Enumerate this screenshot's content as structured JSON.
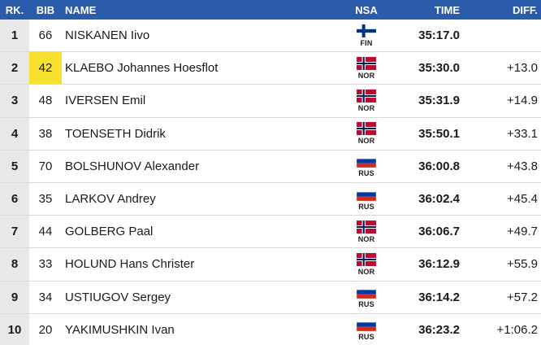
{
  "header": {
    "rank": "RK.",
    "bib": "BIB",
    "name": "NAME",
    "nsa": "NSA",
    "time": "TIME",
    "diff": "DIFF."
  },
  "colors": {
    "header_bg": "#2a5cab",
    "bib_highlight": "#f5e12e",
    "rank_bg": "#e8e8e8"
  },
  "rows": [
    {
      "rank": "1",
      "bib": "66",
      "name": "NISKANEN Iivo",
      "nsa": "FIN",
      "flag": "finland-flag-icon",
      "time": "35:17.0",
      "diff": "",
      "highlight": false
    },
    {
      "rank": "2",
      "bib": "42",
      "name": "KLAEBO Johannes Hoesflot",
      "nsa": "NOR",
      "flag": "norway-flag-icon",
      "time": "35:30.0",
      "diff": "+13.0",
      "highlight": true
    },
    {
      "rank": "3",
      "bib": "48",
      "name": "IVERSEN Emil",
      "nsa": "NOR",
      "flag": "norway-flag-icon",
      "time": "35:31.9",
      "diff": "+14.9",
      "highlight": false
    },
    {
      "rank": "4",
      "bib": "38",
      "name": "TOENSETH Didrik",
      "nsa": "NOR",
      "flag": "norway-flag-icon",
      "time": "35:50.1",
      "diff": "+33.1",
      "highlight": false
    },
    {
      "rank": "5",
      "bib": "70",
      "name": "BOLSHUNOV Alexander",
      "nsa": "RUS",
      "flag": "russia-flag-icon",
      "time": "36:00.8",
      "diff": "+43.8",
      "highlight": false
    },
    {
      "rank": "6",
      "bib": "35",
      "name": "LARKOV Andrey",
      "nsa": "RUS",
      "flag": "russia-flag-icon",
      "time": "36:02.4",
      "diff": "+45.4",
      "highlight": false
    },
    {
      "rank": "7",
      "bib": "44",
      "name": "GOLBERG Paal",
      "nsa": "NOR",
      "flag": "norway-flag-icon",
      "time": "36:06.7",
      "diff": "+49.7",
      "highlight": false
    },
    {
      "rank": "8",
      "bib": "33",
      "name": "HOLUND Hans Christer",
      "nsa": "NOR",
      "flag": "norway-flag-icon",
      "time": "36:12.9",
      "diff": "+55.9",
      "highlight": false
    },
    {
      "rank": "9",
      "bib": "34",
      "name": "USTIUGOV Sergey",
      "nsa": "RUS",
      "flag": "russia-flag-icon",
      "time": "36:14.2",
      "diff": "+57.2",
      "highlight": false
    },
    {
      "rank": "10",
      "bib": "20",
      "name": "YAKIMUSHKIN Ivan",
      "nsa": "RUS",
      "flag": "russia-flag-icon",
      "time": "36:23.2",
      "diff": "+1:06.2",
      "highlight": false
    }
  ]
}
